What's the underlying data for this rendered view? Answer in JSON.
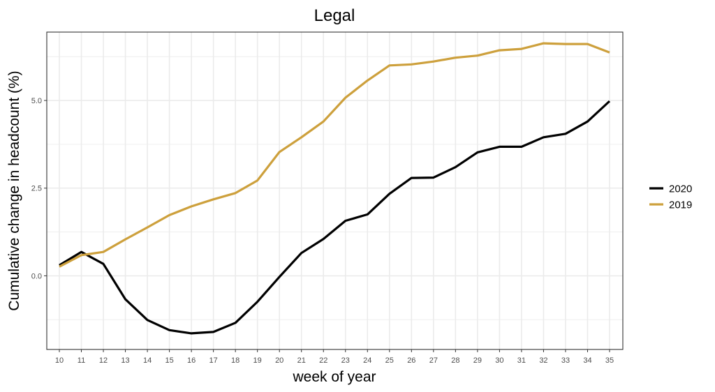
{
  "chart_data": {
    "type": "line",
    "title": "Legal",
    "xlabel": "week of year",
    "ylabel": "Cumulative change in headcount (%)",
    "x": [
      10,
      11,
      12,
      13,
      14,
      15,
      16,
      17,
      18,
      19,
      20,
      21,
      22,
      23,
      24,
      25,
      26,
      27,
      28,
      29,
      30,
      31,
      32,
      33,
      34,
      35
    ],
    "xlim": [
      10,
      35
    ],
    "ylim": [
      -2.1,
      6.95
    ],
    "yticks": [
      0.0,
      2.5,
      5.0
    ],
    "ytick_labels": [
      "0.0",
      "2.5",
      "5.0"
    ],
    "grid": true,
    "legend_position": "right",
    "series": [
      {
        "name": "2020",
        "color": "#000000",
        "values": [
          0.3,
          0.68,
          0.34,
          -0.67,
          -1.26,
          -1.55,
          -1.64,
          -1.6,
          -1.34,
          -0.74,
          -0.03,
          0.65,
          1.05,
          1.57,
          1.75,
          2.34,
          2.79,
          2.8,
          3.1,
          3.52,
          3.68,
          3.68,
          3.95,
          4.05,
          4.4,
          4.98
        ]
      },
      {
        "name": "2019",
        "color": "#CDA03C",
        "values": [
          0.26,
          0.59,
          0.68,
          1.04,
          1.38,
          1.73,
          1.98,
          2.18,
          2.36,
          2.72,
          3.53,
          3.95,
          4.4,
          5.08,
          5.57,
          6.0,
          6.03,
          6.11,
          6.22,
          6.28,
          6.43,
          6.47,
          6.63,
          6.61,
          6.61,
          6.37
        ]
      }
    ]
  }
}
